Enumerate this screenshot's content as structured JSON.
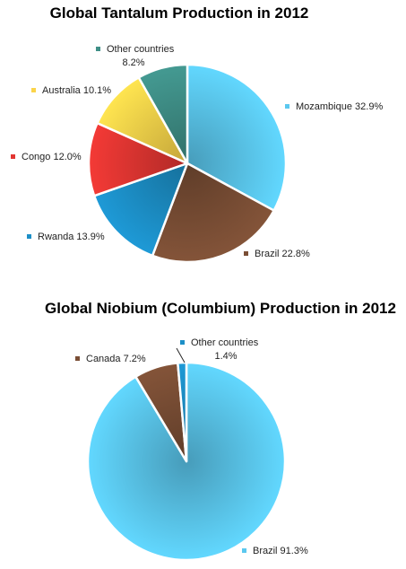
{
  "chart_data": [
    {
      "type": "pie",
      "title": "Global Tantalum Production in 2012",
      "unit": "%",
      "slices": [
        {
          "label": "Mozambique",
          "value": 32.9,
          "display": "Mozambique 32.9%",
          "color": "#5bc8ef"
        },
        {
          "label": "Brazil",
          "value": 22.8,
          "display": "Brazil 22.8%",
          "color": "#7a4e35"
        },
        {
          "label": "Rwanda",
          "value": 13.9,
          "display": "Rwanda 13.9%",
          "color": "#1c8fc7"
        },
        {
          "label": "Congo",
          "value": 12.0,
          "display": "Congo 12.0%",
          "color": "#e23632"
        },
        {
          "label": "Australia",
          "value": 10.1,
          "display": "Australia 10.1%",
          "color": "#fbd44a"
        },
        {
          "label": "Other countries",
          "value": 8.2,
          "display": "Other countries|8.2%",
          "color": "#3f8f87"
        }
      ]
    },
    {
      "type": "pie",
      "title": "Global Niobium (Columbium) Production in 2012",
      "unit": "%",
      "slices": [
        {
          "label": "Brazil",
          "value": 91.3,
          "display": "Brazil 91.3%",
          "color": "#5bc8ef"
        },
        {
          "label": "Canada",
          "value": 7.2,
          "display": "Canada 7.2%",
          "color": "#7a4e35"
        },
        {
          "label": "Other countries",
          "value": 1.4,
          "display": "Other countries|1.4%",
          "color": "#1c8fc7"
        }
      ]
    }
  ]
}
